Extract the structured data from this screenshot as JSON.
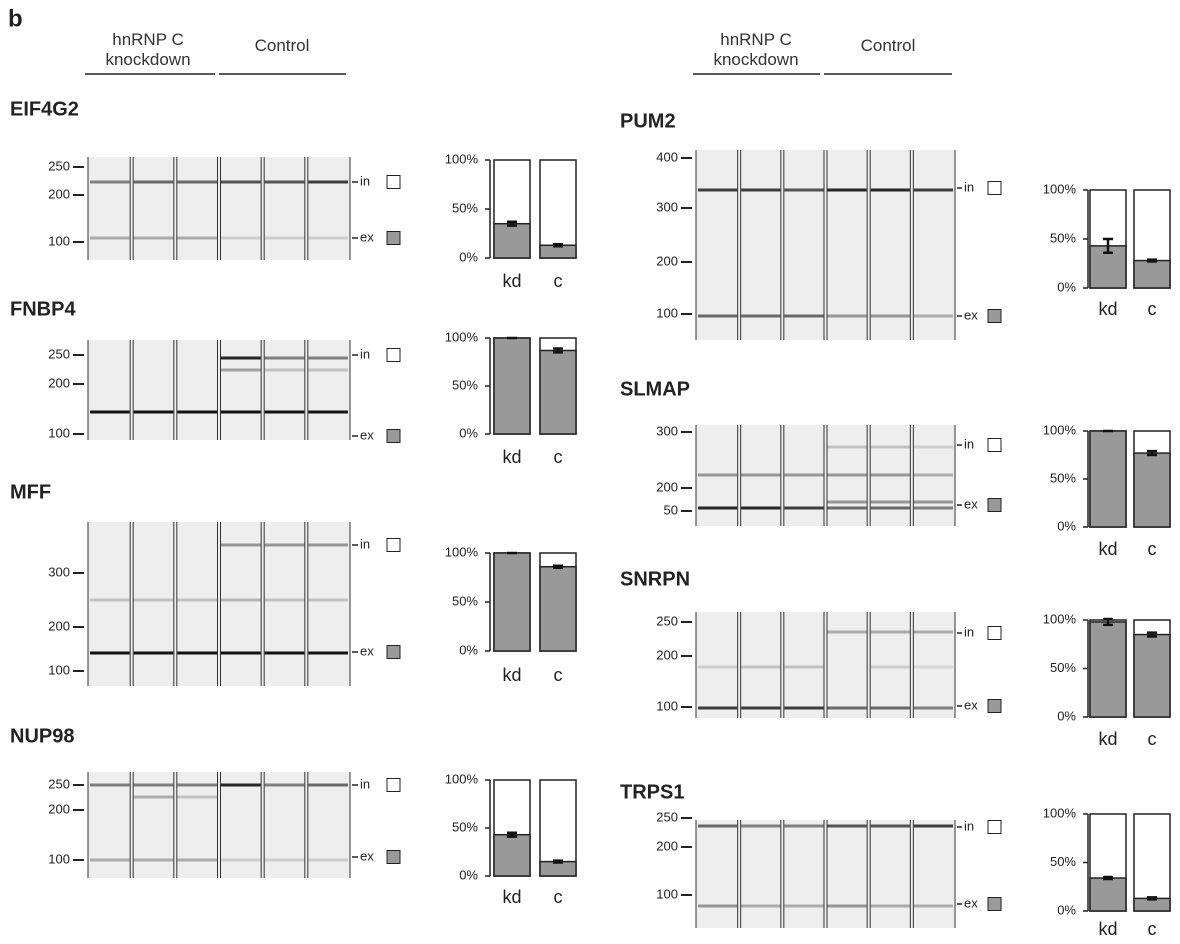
{
  "panel_label": "b",
  "header": {
    "knockdown": "hnRNP C knockdown",
    "control": "Control"
  },
  "band_labels": {
    "in": "in",
    "ex": "ex"
  },
  "gels": [
    {
      "gene": "EIF4G2",
      "ladder": [
        250,
        200,
        100
      ]
    },
    {
      "gene": "FNBP4",
      "ladder": [
        250,
        200,
        100
      ]
    },
    {
      "gene": "MFF",
      "ladder": [
        300,
        200,
        100
      ]
    },
    {
      "gene": "NUP98",
      "ladder": [
        250,
        200,
        100
      ]
    },
    {
      "gene": "PUM2",
      "ladder": [
        400,
        300,
        200,
        100
      ]
    },
    {
      "gene": "SLMAP",
      "ladder": [
        300,
        200,
        50
      ]
    },
    {
      "gene": "SNRPN",
      "ladder": [
        250,
        200,
        100
      ]
    },
    {
      "gene": "TRPS1",
      "ladder": [
        250,
        200,
        100
      ]
    }
  ],
  "chart_data": [
    {
      "type": "bar",
      "categories": [
        "kd",
        "c"
      ],
      "values": [
        35,
        13
      ],
      "errors": [
        2,
        1
      ],
      "color": "#999999",
      "remainder_color": "#ffffff",
      "ylim": [
        0,
        100
      ],
      "yticks": [
        {
          "value": 0,
          "label": "0%"
        },
        {
          "value": 50,
          "label": "50%"
        },
        {
          "value": 100,
          "label": "100%"
        }
      ]
    },
    {
      "type": "bar",
      "categories": [
        "kd",
        "c"
      ],
      "values": [
        100,
        87
      ],
      "errors": [
        0,
        2
      ],
      "color": "#999999",
      "remainder_color": "#ffffff",
      "ylim": [
        0,
        100
      ],
      "yticks": [
        {
          "value": 0,
          "label": "0%"
        },
        {
          "value": 50,
          "label": "50%"
        },
        {
          "value": 100,
          "label": "100%"
        }
      ]
    },
    {
      "type": "bar",
      "categories": [
        "kd",
        "c"
      ],
      "values": [
        100,
        86
      ],
      "errors": [
        0,
        1
      ],
      "color": "#999999",
      "remainder_color": "#ffffff",
      "ylim": [
        0,
        100
      ],
      "yticks": [
        {
          "value": 0,
          "label": "0%"
        },
        {
          "value": 50,
          "label": "50%"
        },
        {
          "value": 100,
          "label": "100%"
        }
      ]
    },
    {
      "type": "bar",
      "categories": [
        "kd",
        "c"
      ],
      "values": [
        43,
        15
      ],
      "errors": [
        2,
        1
      ],
      "color": "#999999",
      "remainder_color": "#ffffff",
      "ylim": [
        0,
        100
      ],
      "yticks": [
        {
          "value": 0,
          "label": "0%"
        },
        {
          "value": 50,
          "label": "50%"
        },
        {
          "value": 100,
          "label": "100%"
        }
      ]
    },
    {
      "type": "bar",
      "categories": [
        "kd",
        "c"
      ],
      "values": [
        43,
        28
      ],
      "errors": [
        7,
        1
      ],
      "color": "#999999",
      "remainder_color": "#ffffff",
      "ylim": [
        0,
        100
      ],
      "yticks": [
        {
          "value": 0,
          "label": "0%"
        },
        {
          "value": 50,
          "label": "50%"
        },
        {
          "value": 100,
          "label": "100%"
        }
      ]
    },
    {
      "type": "bar",
      "categories": [
        "kd",
        "c"
      ],
      "values": [
        100,
        77
      ],
      "errors": [
        0,
        2
      ],
      "color": "#999999",
      "remainder_color": "#ffffff",
      "ylim": [
        0,
        100
      ],
      "yticks": [
        {
          "value": 0,
          "label": "0%"
        },
        {
          "value": 50,
          "label": "50%"
        },
        {
          "value": 100,
          "label": "100%"
        }
      ]
    },
    {
      "type": "bar",
      "categories": [
        "kd",
        "c"
      ],
      "values": [
        98,
        85
      ],
      "errors": [
        3,
        2
      ],
      "color": "#999999",
      "remainder_color": "#ffffff",
      "ylim": [
        0,
        100
      ],
      "yticks": [
        {
          "value": 0,
          "label": "0%"
        },
        {
          "value": 50,
          "label": "50%"
        },
        {
          "value": 100,
          "label": "100%"
        }
      ]
    },
    {
      "type": "bar",
      "categories": [
        "kd",
        "c"
      ],
      "values": [
        34,
        13
      ],
      "errors": [
        1,
        1
      ],
      "color": "#999999",
      "remainder_color": "#ffffff",
      "ylim": [
        0,
        100
      ],
      "yticks": [
        {
          "value": 0,
          "label": "0%"
        },
        {
          "value": 50,
          "label": "50%"
        },
        {
          "value": 100,
          "label": "100%"
        }
      ]
    }
  ]
}
